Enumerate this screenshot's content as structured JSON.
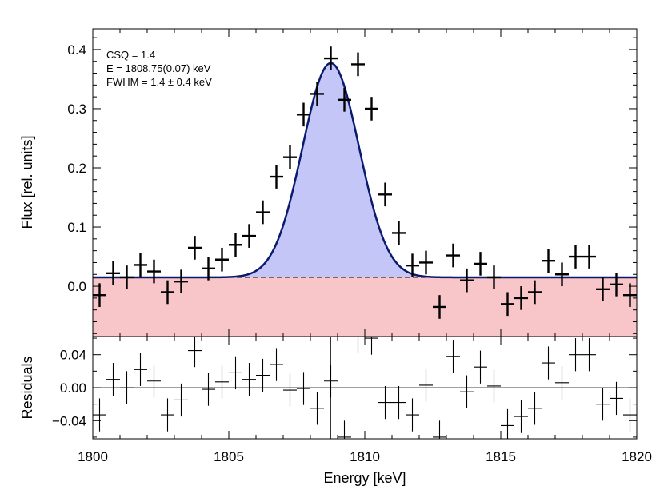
{
  "chart_data": [
    {
      "type": "scatter",
      "panel": "main",
      "ylabel": "Flux [rel. units]",
      "xlim": [
        1800,
        1820
      ],
      "ylim": [
        -0.085,
        0.435
      ],
      "yticks": [
        0.0,
        0.1,
        0.2,
        0.3,
        0.4
      ],
      "ytick_labels": [
        "0.0",
        "0.1",
        "0.2",
        "0.3",
        "0.4"
      ],
      "annotations": [
        "CSQ = 1.4",
        "E = 1808.75(0.07) keV",
        "FWHM = 1.4 ± 0.4 keV"
      ],
      "model": {
        "baseline": 0.015,
        "amplitude": 0.362,
        "center": 1808.75,
        "fwhm": 2.45,
        "line_color": "#0a1a6e",
        "fill_color": "#c4c6f7"
      },
      "background_fill_color": "#f8c6c8",
      "x_half_width": 0.25,
      "points": [
        {
          "x": 1800.25,
          "y": -0.015,
          "yerr": 0.02
        },
        {
          "x": 1800.75,
          "y": 0.022,
          "yerr": 0.02
        },
        {
          "x": 1801.25,
          "y": 0.015,
          "yerr": 0.02
        },
        {
          "x": 1801.75,
          "y": 0.036,
          "yerr": 0.02
        },
        {
          "x": 1802.25,
          "y": 0.025,
          "yerr": 0.02
        },
        {
          "x": 1802.75,
          "y": -0.01,
          "yerr": 0.02
        },
        {
          "x": 1803.25,
          "y": 0.008,
          "yerr": 0.02
        },
        {
          "x": 1803.75,
          "y": 0.065,
          "yerr": 0.02
        },
        {
          "x": 1804.25,
          "y": 0.03,
          "yerr": 0.02
        },
        {
          "x": 1804.75,
          "y": 0.045,
          "yerr": 0.02
        },
        {
          "x": 1805.25,
          "y": 0.07,
          "yerr": 0.02
        },
        {
          "x": 1805.75,
          "y": 0.085,
          "yerr": 0.02
        },
        {
          "x": 1806.25,
          "y": 0.125,
          "yerr": 0.02
        },
        {
          "x": 1806.75,
          "y": 0.185,
          "yerr": 0.02
        },
        {
          "x": 1807.25,
          "y": 0.218,
          "yerr": 0.02
        },
        {
          "x": 1807.75,
          "y": 0.29,
          "yerr": 0.02
        },
        {
          "x": 1808.25,
          "y": 0.325,
          "yerr": 0.02
        },
        {
          "x": 1808.75,
          "y": 0.385,
          "yerr": 0.02
        },
        {
          "x": 1809.25,
          "y": 0.315,
          "yerr": 0.02
        },
        {
          "x": 1809.75,
          "y": 0.375,
          "yerr": 0.02
        },
        {
          "x": 1810.25,
          "y": 0.3,
          "yerr": 0.02
        },
        {
          "x": 1810.75,
          "y": 0.155,
          "yerr": 0.02
        },
        {
          "x": 1811.25,
          "y": 0.09,
          "yerr": 0.02
        },
        {
          "x": 1811.75,
          "y": 0.035,
          "yerr": 0.02
        },
        {
          "x": 1812.25,
          "y": 0.04,
          "yerr": 0.02
        },
        {
          "x": 1812.75,
          "y": -0.035,
          "yerr": 0.02
        },
        {
          "x": 1813.25,
          "y": 0.052,
          "yerr": 0.02
        },
        {
          "x": 1813.75,
          "y": 0.01,
          "yerr": 0.02
        },
        {
          "x": 1814.25,
          "y": 0.038,
          "yerr": 0.02
        },
        {
          "x": 1814.75,
          "y": 0.015,
          "yerr": 0.02
        },
        {
          "x": 1815.25,
          "y": -0.03,
          "yerr": 0.02
        },
        {
          "x": 1815.75,
          "y": -0.02,
          "yerr": 0.02
        },
        {
          "x": 1816.25,
          "y": -0.01,
          "yerr": 0.02
        },
        {
          "x": 1816.75,
          "y": 0.043,
          "yerr": 0.02
        },
        {
          "x": 1817.25,
          "y": 0.02,
          "yerr": 0.02
        },
        {
          "x": 1817.75,
          "y": 0.05,
          "yerr": 0.02
        },
        {
          "x": 1818.25,
          "y": 0.05,
          "yerr": 0.02
        },
        {
          "x": 1818.75,
          "y": -0.005,
          "yerr": 0.02
        },
        {
          "x": 1819.25,
          "y": 0.003,
          "yerr": 0.02
        },
        {
          "x": 1819.75,
          "y": -0.015,
          "yerr": 0.02
        }
      ]
    },
    {
      "type": "scatter",
      "panel": "residuals",
      "xlabel": "Energy [keV]",
      "ylabel": "Residuals",
      "xlim": [
        1800,
        1820
      ],
      "ylim": [
        -0.062,
        0.062
      ],
      "xticks": [
        1800,
        1805,
        1810,
        1815,
        1820
      ],
      "xtick_labels": [
        "1800",
        "1805",
        "1810",
        "1815",
        "1820"
      ],
      "yticks": [
        0.04,
        0.0,
        -0.04
      ],
      "ytick_labels": [
        "0.04",
        "0.00",
        "−0.04"
      ],
      "zero_line": 0.0,
      "vertical_marker_x": 1808.75,
      "x_half_width": 0.25,
      "points": [
        {
          "x": 1800.25,
          "y": -0.033,
          "yerr": 0.02
        },
        {
          "x": 1800.75,
          "y": 0.01,
          "yerr": 0.02
        },
        {
          "x": 1801.25,
          "y": 0.0,
          "yerr": 0.02
        },
        {
          "x": 1801.75,
          "y": 0.022,
          "yerr": 0.02
        },
        {
          "x": 1802.25,
          "y": 0.008,
          "yerr": 0.02
        },
        {
          "x": 1802.75,
          "y": -0.033,
          "yerr": 0.02
        },
        {
          "x": 1803.25,
          "y": -0.015,
          "yerr": 0.02
        },
        {
          "x": 1803.75,
          "y": 0.045,
          "yerr": 0.02
        },
        {
          "x": 1804.25,
          "y": -0.002,
          "yerr": 0.02
        },
        {
          "x": 1804.75,
          "y": 0.007,
          "yerr": 0.02
        },
        {
          "x": 1805.25,
          "y": 0.018,
          "yerr": 0.02
        },
        {
          "x": 1805.75,
          "y": 0.01,
          "yerr": 0.02
        },
        {
          "x": 1806.25,
          "y": 0.015,
          "yerr": 0.02
        },
        {
          "x": 1806.75,
          "y": 0.028,
          "yerr": 0.02
        },
        {
          "x": 1807.25,
          "y": -0.003,
          "yerr": 0.02
        },
        {
          "x": 1807.75,
          "y": -0.001,
          "yerr": 0.02
        },
        {
          "x": 1808.25,
          "y": -0.025,
          "yerr": 0.02
        },
        {
          "x": 1808.75,
          "y": 0.008,
          "yerr": 0.02
        },
        {
          "x": 1809.25,
          "y": -0.06,
          "yerr": 0.02
        },
        {
          "x": 1809.75,
          "y": 0.062,
          "yerr": 0.02
        },
        {
          "x": 1810.25,
          "y": 0.06,
          "yerr": 0.02
        },
        {
          "x": 1810.75,
          "y": -0.018,
          "yerr": 0.02
        },
        {
          "x": 1811.25,
          "y": -0.018,
          "yerr": 0.02
        },
        {
          "x": 1811.75,
          "y": -0.033,
          "yerr": 0.02
        },
        {
          "x": 1812.25,
          "y": 0.003,
          "yerr": 0.02
        },
        {
          "x": 1812.75,
          "y": -0.06,
          "yerr": 0.02
        },
        {
          "x": 1813.25,
          "y": 0.038,
          "yerr": 0.02
        },
        {
          "x": 1813.75,
          "y": -0.005,
          "yerr": 0.02
        },
        {
          "x": 1814.25,
          "y": 0.025,
          "yerr": 0.02
        },
        {
          "x": 1814.75,
          "y": 0.002,
          "yerr": 0.02
        },
        {
          "x": 1815.25,
          "y": -0.046,
          "yerr": 0.02
        },
        {
          "x": 1815.75,
          "y": -0.035,
          "yerr": 0.02
        },
        {
          "x": 1816.25,
          "y": -0.025,
          "yerr": 0.02
        },
        {
          "x": 1816.75,
          "y": 0.03,
          "yerr": 0.02
        },
        {
          "x": 1817.25,
          "y": 0.006,
          "yerr": 0.02
        },
        {
          "x": 1817.75,
          "y": 0.04,
          "yerr": 0.02
        },
        {
          "x": 1818.25,
          "y": 0.04,
          "yerr": 0.02
        },
        {
          "x": 1818.75,
          "y": -0.02,
          "yerr": 0.02
        },
        {
          "x": 1819.25,
          "y": -0.013,
          "yerr": 0.02
        },
        {
          "x": 1819.75,
          "y": -0.033,
          "yerr": 0.02
        }
      ]
    }
  ]
}
